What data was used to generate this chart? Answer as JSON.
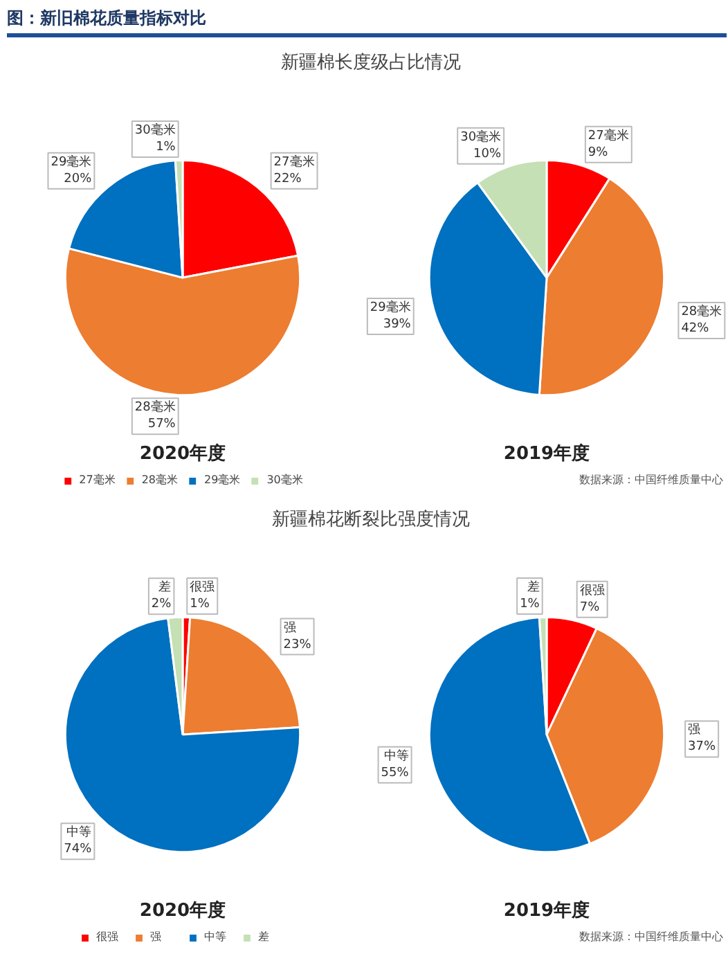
{
  "chart_data": [
    {
      "type": "pie",
      "title": "新疆棉长度级占比情况",
      "xlabel": "2020年度",
      "annotations": [
        "图：新旧棉花质量指标对比"
      ],
      "categories": [
        "27毫米",
        "28毫米",
        "29毫米",
        "30毫米"
      ],
      "values": [
        22,
        57,
        20,
        1
      ],
      "value_labels": [
        "22%",
        "57%",
        "20%",
        "1%"
      ],
      "colors": [
        "#ff0000",
        "#ed7d31",
        "#0070c0",
        "#c5e0b4"
      ],
      "legend": "bottom"
    },
    {
      "type": "pie",
      "xlabel": "2019年度",
      "annotations": [
        "数据来源：中国纤维质量中心"
      ],
      "categories": [
        "27毫米",
        "28毫米",
        "29毫米",
        "30毫米"
      ],
      "values": [
        9,
        42,
        39,
        10
      ],
      "value_labels": [
        "9%",
        "42%",
        "39%",
        "10%"
      ],
      "colors": [
        "#ff0000",
        "#ed7d31",
        "#0070c0",
        "#c5e0b4"
      ]
    },
    {
      "type": "pie",
      "title": "新疆棉花断裂比强度情况",
      "xlabel": "2020年度",
      "categories": [
        "很强",
        "强",
        "中等",
        "差"
      ],
      "values": [
        1,
        23,
        74,
        2
      ],
      "value_labels": [
        "1%",
        "23%",
        "74%",
        "2%"
      ],
      "colors": [
        "#ff0000",
        "#ed7d31",
        "#0070c0",
        "#c5e0b4"
      ],
      "legend": "bottom"
    },
    {
      "type": "pie",
      "xlabel": "2019年度",
      "annotations": [
        "数据来源：中国纤维质量中心"
      ],
      "categories": [
        "很强",
        "强",
        "中等",
        "差"
      ],
      "values": [
        7,
        37,
        55,
        1
      ],
      "value_labels": [
        "7%",
        "37%",
        "55%",
        "1%"
      ],
      "colors": [
        "#ff0000",
        "#ed7d31",
        "#0070c0",
        "#c5e0b4"
      ]
    }
  ]
}
